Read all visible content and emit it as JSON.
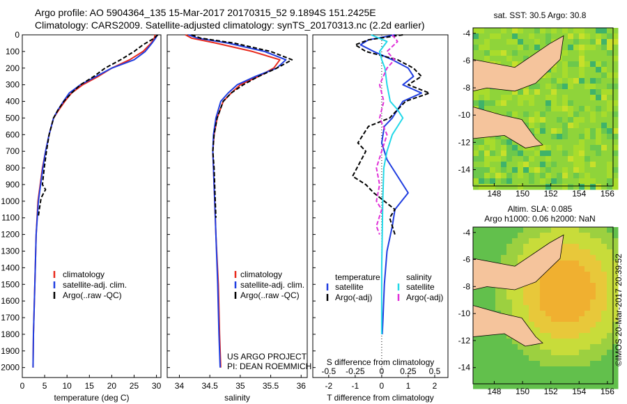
{
  "header": {
    "line1": "Argo profile: AO 5904364_135 15-Mar-2017 20170315_52 9.1894S 151.2425E",
    "line2": "Climatology: CARS2009. Satellite-adjusted climatology: synTS_20170313.nc (2.2d earlier)"
  },
  "colors": {
    "climatology": "#e8291c",
    "satellite": "#1f3de0",
    "argo": "#000000",
    "sal_sat": "#22d8e8",
    "sal_argo": "#e030d8",
    "land": "#f5c49c"
  },
  "chart_data": [
    {
      "type": "line",
      "id": "temperature",
      "xlabel": "temperature (deg C)",
      "ylabel": "",
      "xlim": [
        0,
        31
      ],
      "ylim": [
        2060,
        0
      ],
      "xticks": [
        "0",
        "5",
        "10",
        "15",
        "20",
        "25",
        "30"
      ],
      "yticks": [
        "0",
        "100",
        "200",
        "300",
        "400",
        "500",
        "600",
        "700",
        "800",
        "900",
        "1000",
        "1100",
        "1200",
        "1300",
        "1400",
        "1500",
        "1600",
        "1700",
        "1800",
        "1900",
        "2000"
      ],
      "legend": [
        "climatology",
        "satellite-adj. clim.",
        "Argo(..raw -QC)"
      ],
      "series": [
        {
          "name": "climatology",
          "x": [
            29.7,
            29.5,
            28.8,
            27,
            24,
            20,
            17,
            13.5,
            11,
            9.5,
            8.2,
            7,
            6,
            5.2,
            4.5,
            4,
            3.5,
            3.1,
            2.8,
            2.5,
            2.4
          ],
          "y": [
            0,
            20,
            50,
            100,
            150,
            200,
            250,
            300,
            350,
            400,
            450,
            500,
            600,
            700,
            800,
            900,
            1000,
            1200,
            1500,
            1800,
            2000
          ]
        },
        {
          "name": "satellite-adj. clim.",
          "x": [
            30.2,
            29.8,
            29,
            27.5,
            25,
            20,
            16.5,
            13,
            10.5,
            9.2,
            8,
            7,
            6,
            5.2,
            4.6,
            4.1,
            3.6,
            3.1,
            2.8,
            2.5,
            2.4
          ],
          "y": [
            0,
            20,
            50,
            100,
            150,
            200,
            250,
            300,
            350,
            400,
            450,
            500,
            600,
            700,
            800,
            900,
            1000,
            1200,
            1500,
            1800,
            2000
          ]
        },
        {
          "name": "Argo(..raw -QC)",
          "x": [
            30.3,
            29.5,
            27,
            25,
            22,
            18.5,
            16,
            13,
            11,
            9.3,
            8,
            7,
            6,
            5.4,
            4.9,
            4.5,
            5.2,
            4.2,
            3.8,
            3.6
          ],
          "y": [
            0,
            20,
            60,
            100,
            150,
            200,
            250,
            300,
            350,
            400,
            450,
            500,
            600,
            700,
            800,
            900,
            930,
            980,
            1050,
            1090
          ]
        }
      ]
    },
    {
      "type": "line",
      "id": "salinity",
      "xlabel": "salinity",
      "ylabel": "",
      "xlim": [
        33.8,
        36.1
      ],
      "ylim": [
        2060,
        0
      ],
      "xticks": [
        "34",
        "34.5",
        "35",
        "35.5",
        "36"
      ],
      "legend": [
        "climatology",
        "satellite-adj. clim.",
        "Argo(..raw -QC)"
      ],
      "annotation": [
        "US ARGO PROJECT",
        "PI: DEAN ROEMMICH"
      ],
      "series": [
        {
          "name": "climatology",
          "x": [
            34.1,
            34.2,
            34.6,
            35.2,
            35.65,
            35.55,
            35.3,
            35.0,
            34.85,
            34.72,
            34.62,
            34.57,
            34.55,
            34.56,
            34.58,
            34.6,
            34.64,
            34.66,
            34.68
          ],
          "y": [
            0,
            20,
            50,
            100,
            150,
            200,
            250,
            300,
            350,
            400,
            500,
            600,
            700,
            800,
            1000,
            1200,
            1500,
            1800,
            2000
          ]
        },
        {
          "name": "satellite-adj. clim.",
          "x": [
            34.15,
            34.3,
            34.8,
            35.4,
            35.75,
            35.6,
            35.25,
            34.95,
            34.8,
            34.68,
            34.6,
            34.56,
            34.55,
            34.56,
            34.58,
            34.6,
            34.63,
            34.65,
            34.67
          ],
          "y": [
            0,
            20,
            50,
            100,
            150,
            200,
            250,
            300,
            350,
            400,
            500,
            600,
            700,
            800,
            1000,
            1200,
            1500,
            1800,
            2000
          ]
        },
        {
          "name": "Argo(..raw -QC)",
          "x": [
            34.2,
            34.35,
            34.9,
            35.5,
            35.85,
            35.6,
            35.3,
            35.05,
            34.85,
            34.72,
            34.62,
            34.57,
            34.55,
            34.57,
            34.59,
            34.6
          ],
          "y": [
            0,
            20,
            50,
            100,
            150,
            200,
            250,
            300,
            350,
            400,
            500,
            600,
            700,
            800,
            1000,
            1100
          ]
        }
      ]
    },
    {
      "type": "line",
      "id": "differences",
      "xlabel": "T difference from climatology",
      "xlabel2": "S difference from climatology",
      "xlim": [
        -2.6,
        2.5
      ],
      "ylim": [
        2060,
        0
      ],
      "xticks": [
        "-2",
        "-1",
        "0",
        "1",
        "2"
      ],
      "xticks2": [
        "-0.5",
        "-0.25",
        "0",
        "0.25",
        "0.5"
      ],
      "legend_title_t": "temperature",
      "legend_title_s": "salinity",
      "legend": [
        "satellite",
        "Argo(-adj)",
        "satellite",
        "Argo(-adj)"
      ],
      "series": [
        {
          "name": "temperature satellite",
          "x": [
            0.5,
            -0.5,
            -0.8,
            -0.3,
            0.4,
            1.0,
            1.2,
            0.8,
            1.5,
            0.8,
            0.4,
            0.1,
            0.0,
            0.2,
            0.6,
            1.0,
            0.5,
            0.4,
            0.2,
            0.1,
            0.05,
            0.02
          ],
          "y": [
            0,
            30,
            60,
            100,
            150,
            200,
            250,
            300,
            350,
            400,
            500,
            550,
            650,
            750,
            850,
            950,
            1050,
            1150,
            1300,
            1500,
            1700,
            1800
          ]
        },
        {
          "name": "temperature Argo(-adj)",
          "x": [
            0.8,
            -0.5,
            -1.0,
            -0.6,
            0.6,
            1.2,
            1.5,
            1.0,
            1.8,
            0.9,
            0.3,
            -0.5,
            -0.9,
            -0.6,
            -1.1,
            -0.6,
            -0.3,
            0.1,
            0.5,
            0.3,
            0.5
          ],
          "y": [
            0,
            30,
            60,
            100,
            150,
            200,
            250,
            300,
            350,
            400,
            500,
            550,
            650,
            700,
            850,
            900,
            950,
            1000,
            1050,
            1100,
            1200
          ]
        },
        {
          "name": "salinity satellite",
          "x": [
            -0.1,
            0.05,
            -0.02,
            0.0,
            0.03,
            0.05,
            0.08,
            0.15,
            0.2,
            0.15,
            0.1,
            0.05,
            0.02,
            0.01,
            0.0,
            0.0
          ],
          "y": [
            0,
            40,
            100,
            150,
            200,
            300,
            400,
            450,
            500,
            550,
            600,
            700,
            800,
            1000,
            1400,
            1800
          ]
        },
        {
          "name": "salinity Argo(-adj)",
          "x": [
            0.1,
            0.15,
            0.05,
            0.12,
            0.05,
            -0.02,
            0.02,
            -0.02,
            0.05,
            0.0,
            -0.05,
            -0.02,
            -0.05,
            0.0,
            -0.05,
            -0.02
          ],
          "y": [
            0,
            40,
            100,
            150,
            200,
            300,
            400,
            500,
            600,
            700,
            800,
            900,
            1000,
            1050,
            1150,
            1200
          ]
        }
      ]
    },
    {
      "type": "heatmap",
      "id": "sst_map",
      "title": "sat. SST: 30.5 Argo: 30.8",
      "xticks": [
        "148",
        "150",
        "152",
        "154",
        "156"
      ],
      "yticks": [
        "-4",
        "-6",
        "-8",
        "-10",
        "-12",
        "-14"
      ]
    },
    {
      "type": "heatmap",
      "id": "sla_map",
      "title": [
        "Altim. SLA: 0.085",
        "Argo h1000: 0.06 h2000: NaN"
      ],
      "xticks": [
        "148",
        "150",
        "152",
        "154",
        "156"
      ],
      "yticks": [
        "-4",
        "-6",
        "-8",
        "-10",
        "-12",
        "-14"
      ]
    }
  ],
  "footer": {
    "credit": "©IMOS 20-Mar-2017 20:39:52"
  }
}
